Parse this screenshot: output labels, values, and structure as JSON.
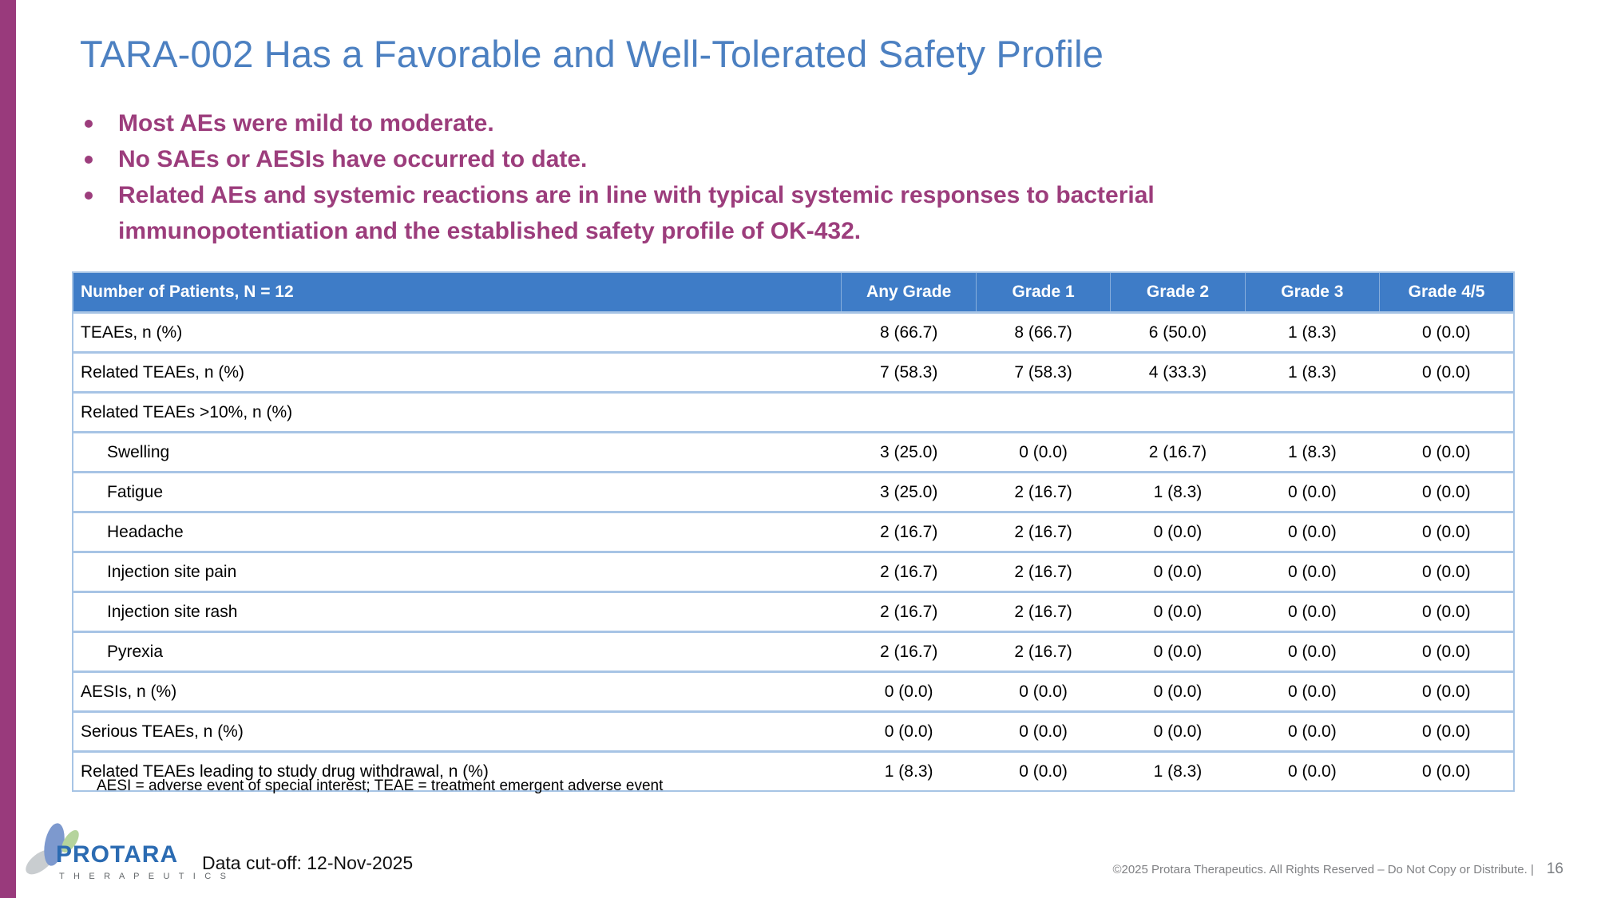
{
  "slide": {
    "title": "TARA-002 Has a Favorable and Well-Tolerated Safety Profile",
    "bullets": [
      "Most AEs were mild to moderate.",
      "No SAEs or AESIs have occurred to date.",
      "Related AEs and systemic reactions are in line with typical systemic responses to bacterial immunopotentiation and the established safety profile of OK-432."
    ],
    "footnote": "AESI = adverse event of special interest; TEAE = treatment emergent adverse event",
    "data_cutoff": "Data cut-off: 12-Nov-2025",
    "copyright": "©2025 Protara Therapeutics. All Rights Reserved – Do Not Copy or Distribute.  |",
    "page_number": "16"
  },
  "logo": {
    "name": "PROTARA",
    "subtitle": "T H E R A P E U T I C S",
    "icon": "three-leaf-logo-icon"
  },
  "table": {
    "headers": [
      "Number of Patients, N = 12",
      "Any Grade",
      "Grade 1",
      "Grade 2",
      "Grade 3",
      "Grade 4/5"
    ],
    "rows": [
      {
        "label": "TEAEs, n (%)",
        "indent": false,
        "values": [
          "8 (66.7)",
          "8 (66.7)",
          "6 (50.0)",
          "1 (8.3)",
          "0 (0.0)"
        ]
      },
      {
        "label": "Related TEAEs, n (%)",
        "indent": false,
        "values": [
          "7 (58.3)",
          "7 (58.3)",
          "4 (33.3)",
          "1 (8.3)",
          "0 (0.0)"
        ]
      },
      {
        "label": "Related TEAEs >10%, n (%)",
        "indent": false,
        "values": [
          "",
          "",
          "",
          "",
          ""
        ]
      },
      {
        "label": "Swelling",
        "indent": true,
        "values": [
          "3 (25.0)",
          "0 (0.0)",
          "2 (16.7)",
          "1 (8.3)",
          "0 (0.0)"
        ]
      },
      {
        "label": "Fatigue",
        "indent": true,
        "values": [
          "3 (25.0)",
          "2 (16.7)",
          "1 (8.3)",
          "0 (0.0)",
          "0 (0.0)"
        ]
      },
      {
        "label": "Headache",
        "indent": true,
        "values": [
          "2 (16.7)",
          "2 (16.7)",
          "0 (0.0)",
          "0 (0.0)",
          "0 (0.0)"
        ]
      },
      {
        "label": "Injection site pain",
        "indent": true,
        "values": [
          "2 (16.7)",
          "2 (16.7)",
          "0 (0.0)",
          "0 (0.0)",
          "0 (0.0)"
        ]
      },
      {
        "label": "Injection site rash",
        "indent": true,
        "values": [
          "2 (16.7)",
          "2 (16.7)",
          "0 (0.0)",
          "0 (0.0)",
          "0 (0.0)"
        ]
      },
      {
        "label": "Pyrexia",
        "indent": true,
        "values": [
          "2 (16.7)",
          "2 (16.7)",
          "0 (0.0)",
          "0 (0.0)",
          "0 (0.0)"
        ]
      },
      {
        "label": "AESIs, n (%)",
        "indent": false,
        "values": [
          "0 (0.0)",
          "0 (0.0)",
          "0 (0.0)",
          "0 (0.0)",
          "0 (0.0)"
        ]
      },
      {
        "label": "Serious TEAEs, n (%)",
        "indent": false,
        "values": [
          "0 (0.0)",
          "0 (0.0)",
          "0 (0.0)",
          "0 (0.0)",
          "0 (0.0)"
        ]
      },
      {
        "label": "Related TEAEs leading to study drug withdrawal, n (%)",
        "indent": false,
        "values": [
          "1 (8.3)",
          "0 (0.0)",
          "1 (8.3)",
          "0 (0.0)",
          "0 (0.0)"
        ]
      }
    ]
  },
  "colors": {
    "accent_purple": "#993A7C",
    "bullet_text": "#9C3D7C",
    "title_blue": "#4C80C1",
    "table_header_blue": "#3E7CC7",
    "table_border_blue": "#A7C4E5",
    "logo_blue": "#2B6BB2",
    "logo_green": "#B5D49C",
    "logo_gray_leaf": "#C9CDD0",
    "footer_gray": "#808184"
  }
}
